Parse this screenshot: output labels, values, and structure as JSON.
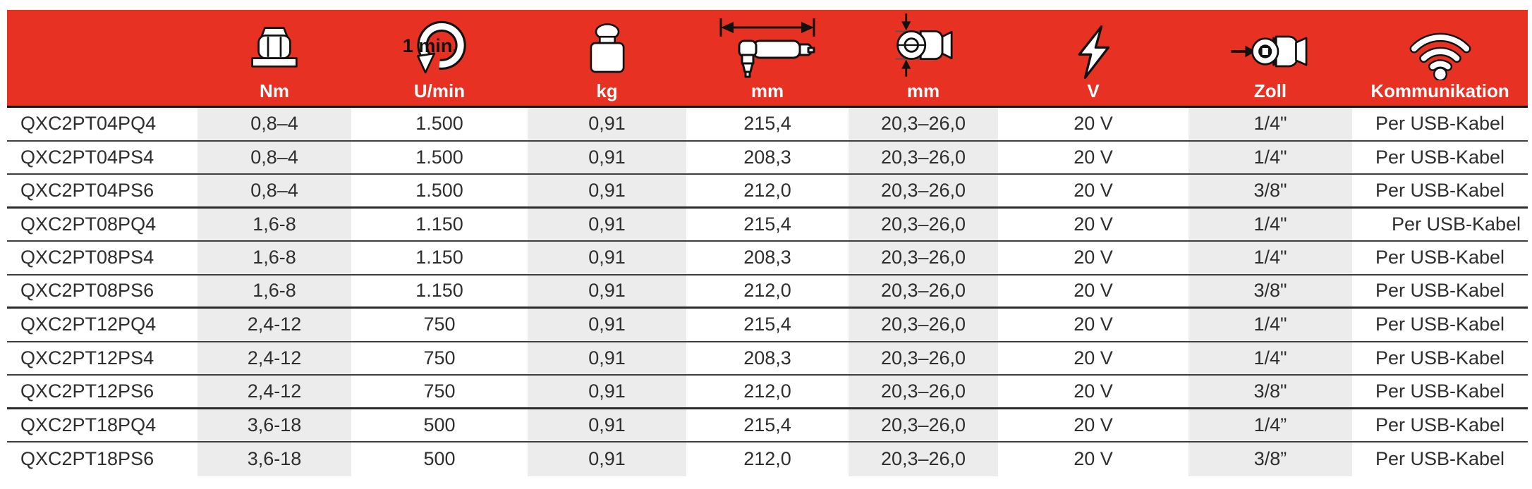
{
  "colors": {
    "header_red": "#e63123",
    "column_band_gray": "#ececec",
    "header_label_white": "#ffffff",
    "body_text": "#2e2e2e"
  },
  "table": {
    "columns": [
      {
        "key": "model",
        "label": "",
        "icon": ""
      },
      {
        "key": "nm",
        "label": "Nm",
        "icon": "torque-nut-icon"
      },
      {
        "key": "umin",
        "label": "U/min",
        "icon": "rotation-speed-icon",
        "icon_text": "1 min."
      },
      {
        "key": "kg",
        "label": "kg",
        "icon": "weight-icon"
      },
      {
        "key": "mm_length",
        "label": "mm",
        "icon": "tool-length-icon"
      },
      {
        "key": "mm_diameter",
        "label": "mm",
        "icon": "diameter-icon"
      },
      {
        "key": "v",
        "label": "V",
        "icon": "voltage-icon"
      },
      {
        "key": "zoll",
        "label": "Zoll",
        "icon": "square-drive-icon"
      },
      {
        "key": "komm",
        "label": "Kommunikation",
        "icon": "wifi-icon"
      }
    ],
    "rows": [
      {
        "model": "QXC2PT04PQ4",
        "nm": "0,8–4",
        "umin": "1.500",
        "kg": "0,91",
        "mm_length": "215,4",
        "mm_diameter": "20,3–26,0",
        "v": "20 V",
        "zoll": "1/4\"",
        "komm": "Per USB-Kabel"
      },
      {
        "model": "QXC2PT04PS4",
        "nm": "0,8–4",
        "umin": "1.500",
        "kg": "0,91",
        "mm_length": "208,3",
        "mm_diameter": "20,3–26,0",
        "v": "20 V",
        "zoll": "1/4\"",
        "komm": "Per USB-Kabel"
      },
      {
        "model": "QXC2PT04PS6",
        "nm": "0,8–4",
        "umin": "1.500",
        "kg": "0,91",
        "mm_length": "212,0",
        "mm_diameter": "20,3–26,0",
        "v": "20 V",
        "zoll": "3/8\"",
        "komm": "Per USB-Kabel"
      },
      {
        "model": "QXC2PT08PQ4",
        "nm": "1,6-8",
        "umin": "1.150",
        "kg": "0,91",
        "mm_length": "215,4",
        "mm_diameter": "20,3–26,0",
        "v": "20 V",
        "zoll": "1/4\"",
        "komm": "Per USB-Kabel"
      },
      {
        "model": "QXC2PT08PS4",
        "nm": "1,6-8",
        "umin": "1.150",
        "kg": "0,91",
        "mm_length": "208,3",
        "mm_diameter": "20,3–26,0",
        "v": "20 V",
        "zoll": "1/4\"",
        "komm": "Per USB-Kabel"
      },
      {
        "model": "QXC2PT08PS6",
        "nm": "1,6-8",
        "umin": "1.150",
        "kg": "0,91",
        "mm_length": "212,0",
        "mm_diameter": "20,3–26,0",
        "v": "20 V",
        "zoll": "3/8\"",
        "komm": "Per USB-Kabel"
      },
      {
        "model": "QXC2PT12PQ4",
        "nm": "2,4-12",
        "umin": "750",
        "kg": "0,91",
        "mm_length": "215,4",
        "mm_diameter": "20,3–26,0",
        "v": "20 V",
        "zoll": "1/4\"",
        "komm": "Per USB-Kabel"
      },
      {
        "model": "QXC2PT12PS4",
        "nm": "2,4-12",
        "umin": "750",
        "kg": "0,91",
        "mm_length": "208,3",
        "mm_diameter": "20,3–26,0",
        "v": "20 V",
        "zoll": "1/4\"",
        "komm": "Per USB-Kabel"
      },
      {
        "model": "QXC2PT12PS6",
        "nm": "2,4-12",
        "umin": "750",
        "kg": "0,91",
        "mm_length": "212,0",
        "mm_diameter": "20,3–26,0",
        "v": "20 V",
        "zoll": "3/8\"",
        "komm": "Per USB-Kabel"
      },
      {
        "model": "QXC2PT18PQ4",
        "nm": "3,6-18",
        "umin": "500",
        "kg": "0,91",
        "mm_length": "215,4",
        "mm_diameter": "20,3–26,0",
        "v": "20 V",
        "zoll": "1/4”",
        "komm": "Per USB-Kabel"
      },
      {
        "model": "QXC2PT18PS6",
        "nm": "3,6-18",
        "umin": "500",
        "kg": "0,91",
        "mm_length": "212,0",
        "mm_diameter": "20,3–26,0",
        "v": "20 V",
        "zoll": "3/8”",
        "komm": "Per USB-Kabel"
      }
    ]
  }
}
